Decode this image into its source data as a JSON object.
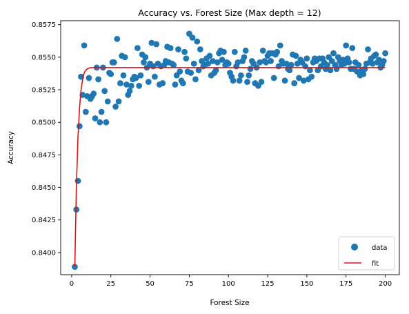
{
  "chart_data": {
    "type": "scatter",
    "title": "Accuracy vs. Forest Size (Max depth = 12)",
    "xlabel": "Forest Size",
    "ylabel": "Accuracy",
    "xlim": [
      -7,
      209
    ],
    "ylim": [
      0.8383,
      0.8578
    ],
    "xticks": [
      0,
      25,
      50,
      75,
      100,
      125,
      150,
      175,
      200
    ],
    "xtick_labels": [
      "0",
      "25",
      "50",
      "75",
      "100",
      "125",
      "150",
      "175",
      "200"
    ],
    "yticks": [
      0.84,
      0.8425,
      0.845,
      0.8475,
      0.85,
      0.8525,
      0.855,
      0.8575
    ],
    "ytick_labels": [
      "0.8400",
      "0.8425",
      "0.8450",
      "0.8475",
      "0.8500",
      "0.8525",
      "0.8550",
      "0.8575"
    ],
    "grid": false,
    "legend_position": "bottom-right",
    "series": [
      {
        "name": "data",
        "kind": "scatter",
        "color": "#1f77b4",
        "points": [
          [
            2,
            0.8389
          ],
          [
            3,
            0.8433
          ],
          [
            4,
            0.8455
          ],
          [
            5,
            0.8497
          ],
          [
            6,
            0.8535
          ],
          [
            7,
            0.8521
          ],
          [
            8,
            0.8559
          ],
          [
            9,
            0.8508
          ],
          [
            10,
            0.852
          ],
          [
            11,
            0.8534
          ],
          [
            12,
            0.8518
          ],
          [
            13,
            0.852
          ],
          [
            14,
            0.8522
          ],
          [
            15,
            0.8503
          ],
          [
            16,
            0.8542
          ],
          [
            17,
            0.8533
          ],
          [
            18,
            0.85
          ],
          [
            19,
            0.8508
          ],
          [
            20,
            0.8542
          ],
          [
            21,
            0.8524
          ],
          [
            22,
            0.85
          ],
          [
            23,
            0.8516
          ],
          [
            24,
            0.8538
          ],
          [
            25,
            0.8537
          ],
          [
            26,
            0.8546
          ],
          [
            27,
            0.8546
          ],
          [
            28,
            0.8512
          ],
          [
            29,
            0.8564
          ],
          [
            30,
            0.8516
          ],
          [
            31,
            0.853
          ],
          [
            32,
            0.8551
          ],
          [
            33,
            0.8536
          ],
          [
            34,
            0.855
          ],
          [
            35,
            0.8529
          ],
          [
            36,
            0.8521
          ],
          [
            37,
            0.8524
          ],
          [
            38,
            0.8528
          ],
          [
            39,
            0.8533
          ],
          [
            40,
            0.8535
          ],
          [
            41,
            0.8534
          ],
          [
            42,
            0.8557
          ],
          [
            43,
            0.8528
          ],
          [
            44,
            0.8536
          ],
          [
            45,
            0.8552
          ],
          [
            46,
            0.8546
          ],
          [
            47,
            0.855
          ],
          [
            48,
            0.8542
          ],
          [
            49,
            0.8531
          ],
          [
            50,
            0.8545
          ],
          [
            51,
            0.8561
          ],
          [
            52,
            0.8543
          ],
          [
            53,
            0.8535
          ],
          [
            54,
            0.856
          ],
          [
            55,
            0.8545
          ],
          [
            56,
            0.8529
          ],
          [
            57,
            0.8543
          ],
          [
            58,
            0.853
          ],
          [
            59,
            0.8544
          ],
          [
            60,
            0.8547
          ],
          [
            61,
            0.8558
          ],
          [
            62,
            0.8546
          ],
          [
            63,
            0.8557
          ],
          [
            64,
            0.8545
          ],
          [
            65,
            0.8544
          ],
          [
            66,
            0.8529
          ],
          [
            67,
            0.8536
          ],
          [
            68,
            0.8556
          ],
          [
            69,
            0.8539
          ],
          [
            70,
            0.8532
          ],
          [
            71,
            0.853
          ],
          [
            72,
            0.8554
          ],
          [
            73,
            0.8549
          ],
          [
            74,
            0.8539
          ],
          [
            75,
            0.8568
          ],
          [
            76,
            0.8538
          ],
          [
            77,
            0.8565
          ],
          [
            78,
            0.8545
          ],
          [
            79,
            0.8533
          ],
          [
            80,
            0.8562
          ],
          [
            81,
            0.854
          ],
          [
            82,
            0.8556
          ],
          [
            83,
            0.8547
          ],
          [
            84,
            0.8543
          ],
          [
            85,
            0.8544
          ],
          [
            86,
            0.8549
          ],
          [
            87,
            0.8545
          ],
          [
            88,
            0.8551
          ],
          [
            89,
            0.8536
          ],
          [
            90,
            0.8547
          ],
          [
            91,
            0.8538
          ],
          [
            92,
            0.854
          ],
          [
            93,
            0.8546
          ],
          [
            94,
            0.8553
          ],
          [
            95,
            0.8555
          ],
          [
            96,
            0.8548
          ],
          [
            97,
            0.8554
          ],
          [
            98,
            0.8544
          ],
          [
            99,
            0.8546
          ],
          [
            100,
            0.8545
          ],
          [
            101,
            0.8538
          ],
          [
            102,
            0.8535
          ],
          [
            103,
            0.8532
          ],
          [
            104,
            0.8554
          ],
          [
            105,
            0.8543
          ],
          [
            106,
            0.8546
          ],
          [
            107,
            0.8532
          ],
          [
            108,
            0.8536
          ],
          [
            109,
            0.8547
          ],
          [
            110,
            0.855
          ],
          [
            111,
            0.8555
          ],
          [
            112,
            0.8531
          ],
          [
            113,
            0.8536
          ],
          [
            114,
            0.8541
          ],
          [
            115,
            0.8547
          ],
          [
            116,
            0.8545
          ],
          [
            117,
            0.853
          ],
          [
            118,
            0.8542
          ],
          [
            119,
            0.8528
          ],
          [
            120,
            0.8546
          ],
          [
            121,
            0.8531
          ],
          [
            122,
            0.8555
          ],
          [
            123,
            0.8547
          ],
          [
            124,
            0.8546
          ],
          [
            125,
            0.8551
          ],
          [
            126,
            0.8553
          ],
          [
            127,
            0.8547
          ],
          [
            128,
            0.8553
          ],
          [
            129,
            0.8534
          ],
          [
            130,
            0.8552
          ],
          [
            131,
            0.8554
          ],
          [
            132,
            0.8543
          ],
          [
            133,
            0.8559
          ],
          [
            134,
            0.8547
          ],
          [
            135,
            0.8545
          ],
          [
            136,
            0.8532
          ],
          [
            137,
            0.8545
          ],
          [
            138,
            0.8541
          ],
          [
            139,
            0.854
          ],
          [
            140,
            0.8544
          ],
          [
            141,
            0.8552
          ],
          [
            142,
            0.853
          ],
          [
            143,
            0.8551
          ],
          [
            144,
            0.8545
          ],
          [
            145,
            0.8534
          ],
          [
            146,
            0.8548
          ],
          [
            147,
            0.8546
          ],
          [
            148,
            0.8532
          ],
          [
            149,
            0.8543
          ],
          [
            150,
            0.8549
          ],
          [
            151,
            0.8533
          ],
          [
            152,
            0.854
          ],
          [
            153,
            0.8535
          ],
          [
            154,
            0.8546
          ],
          [
            155,
            0.8549
          ],
          [
            156,
            0.8547
          ],
          [
            157,
            0.854
          ],
          [
            158,
            0.8549
          ],
          [
            159,
            0.8543
          ],
          [
            160,
            0.8549
          ],
          [
            161,
            0.8546
          ],
          [
            162,
            0.8541
          ],
          [
            163,
            0.8544
          ],
          [
            164,
            0.855
          ],
          [
            165,
            0.854
          ],
          [
            166,
            0.8547
          ],
          [
            167,
            0.8553
          ],
          [
            168,
            0.8544
          ],
          [
            169,
            0.8541
          ],
          [
            170,
            0.855
          ],
          [
            171,
            0.8547
          ],
          [
            172,
            0.8544
          ],
          [
            173,
            0.8548
          ],
          [
            174,
            0.8545
          ],
          [
            175,
            0.8559
          ],
          [
            176,
            0.8549
          ],
          [
            177,
            0.8546
          ],
          [
            178,
            0.8541
          ],
          [
            179,
            0.8557
          ],
          [
            180,
            0.8541
          ],
          [
            181,
            0.8546
          ],
          [
            182,
            0.8539
          ],
          [
            183,
            0.8544
          ],
          [
            184,
            0.8536
          ],
          [
            185,
            0.854
          ],
          [
            186,
            0.8537
          ],
          [
            187,
            0.8541
          ],
          [
            188,
            0.8545
          ],
          [
            189,
            0.8556
          ],
          [
            190,
            0.8546
          ],
          [
            191,
            0.8549
          ],
          [
            192,
            0.8545
          ],
          [
            193,
            0.8551
          ],
          [
            194,
            0.8552
          ],
          [
            195,
            0.8546
          ],
          [
            196,
            0.8548
          ],
          [
            197,
            0.8542
          ],
          [
            198,
            0.8544
          ],
          [
            199,
            0.8547
          ],
          [
            200,
            0.8553
          ]
        ]
      },
      {
        "name": "fit",
        "kind": "line",
        "color": "#e01010",
        "points": [
          [
            2,
            0.8389
          ],
          [
            3,
            0.845
          ],
          [
            4,
            0.8488
          ],
          [
            5,
            0.8511
          ],
          [
            6,
            0.8525
          ],
          [
            7,
            0.8533
          ],
          [
            8,
            0.8538
          ],
          [
            9,
            0.854
          ],
          [
            10,
            0.8541
          ],
          [
            12,
            0.8542
          ],
          [
            15,
            0.8542
          ],
          [
            20,
            0.8542
          ],
          [
            50,
            0.8542
          ],
          [
            100,
            0.8542
          ],
          [
            150,
            0.8542
          ],
          [
            200,
            0.8542
          ]
        ]
      }
    ]
  }
}
